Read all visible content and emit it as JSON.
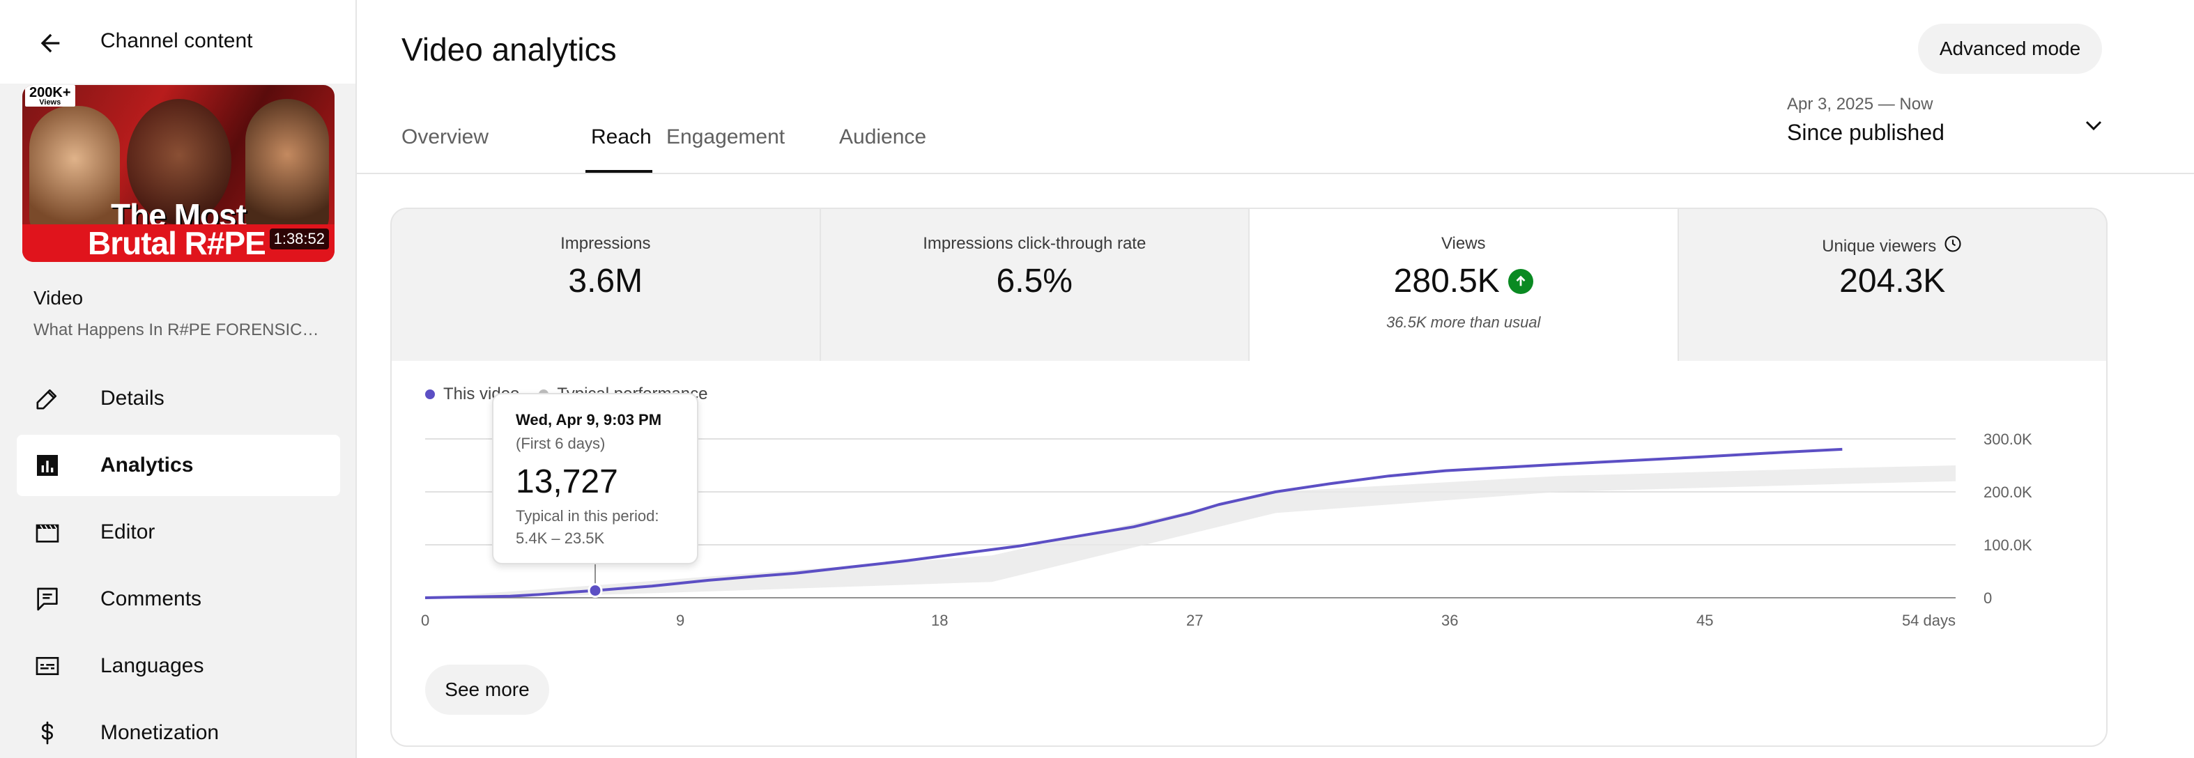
{
  "sidebar": {
    "title": "Channel content",
    "thumbnail": {
      "views_badge": "200K+",
      "views_badge_sub": "Views",
      "line1": "The Most",
      "line2": "Brutal R#PE",
      "duration": "1:38:52"
    },
    "video_label": "Video",
    "video_title": "What Happens In R#PE FORENSICS...",
    "nav": [
      {
        "label": "Details",
        "icon": "pencil-icon"
      },
      {
        "label": "Analytics",
        "icon": "bar-chart-icon",
        "active": true
      },
      {
        "label": "Editor",
        "icon": "clapperboard-icon"
      },
      {
        "label": "Comments",
        "icon": "comment-icon"
      },
      {
        "label": "Languages",
        "icon": "subtitles-icon"
      },
      {
        "label": "Monetization",
        "icon": "dollar-icon"
      }
    ]
  },
  "header": {
    "title": "Video analytics",
    "advanced_mode": "Advanced mode",
    "tabs": [
      "Overview",
      "Reach",
      "Engagement",
      "Audience"
    ],
    "active_tab": "Reach",
    "date_range": "Apr 3, 2025 — Now",
    "date_label": "Since published"
  },
  "metrics": [
    {
      "label": "Impressions",
      "value": "3.6M"
    },
    {
      "label": "Impressions click-through rate",
      "value": "6.5%"
    },
    {
      "label": "Views",
      "value": "280.5K",
      "note": "36.5K more than usual",
      "active": true
    },
    {
      "label": "Unique viewers",
      "value": "204.3K"
    }
  ],
  "legend": {
    "this_video": "This video",
    "typical": "Typical performance"
  },
  "tooltip": {
    "date": "Wed, Apr 9, 9:03 PM",
    "period": "(First 6 days)",
    "value": "13,727",
    "typical_label": "Typical in this period:",
    "typical_range": "5.4K – 23.5K"
  },
  "see_more": "See more",
  "colors": {
    "accent": "#5c4fc4",
    "positive": "#0a8a22",
    "typical_band": "#e8e8e8"
  },
  "chart_data": {
    "type": "line",
    "x_unit": "days",
    "xticks": [
      "0",
      "9",
      "18",
      "27",
      "36",
      "45",
      "54 days"
    ],
    "yticks": [
      "0",
      "100.0K",
      "200.0K",
      "300.0K"
    ],
    "xlim": [
      0,
      54
    ],
    "ylim": [
      0,
      300000
    ],
    "series": [
      {
        "name": "This video",
        "x": [
          0,
          2,
          3,
          4,
          5,
          6,
          8,
          10,
          12,
          13,
          15,
          17,
          19,
          21,
          23,
          25,
          27,
          28,
          30,
          32,
          34,
          36,
          40,
          45,
          48,
          50
        ],
        "y": [
          0,
          2000,
          3000,
          6000,
          10000,
          13727,
          22000,
          33000,
          42000,
          46000,
          58000,
          70000,
          84000,
          98000,
          116000,
          134000,
          160000,
          176000,
          200000,
          216000,
          230000,
          240000,
          252000,
          266000,
          275000,
          280500
        ]
      },
      {
        "name": "Typical performance",
        "x": [
          0,
          6,
          10,
          20,
          30,
          40,
          50,
          54
        ],
        "y_low": [
          0,
          5400,
          12000,
          30000,
          160000,
          200000,
          215000,
          220000
        ],
        "y_high": [
          0,
          23500,
          40000,
          80000,
          200000,
          230000,
          245000,
          250000
        ]
      }
    ],
    "grid": true,
    "legend_position": "top-left"
  }
}
